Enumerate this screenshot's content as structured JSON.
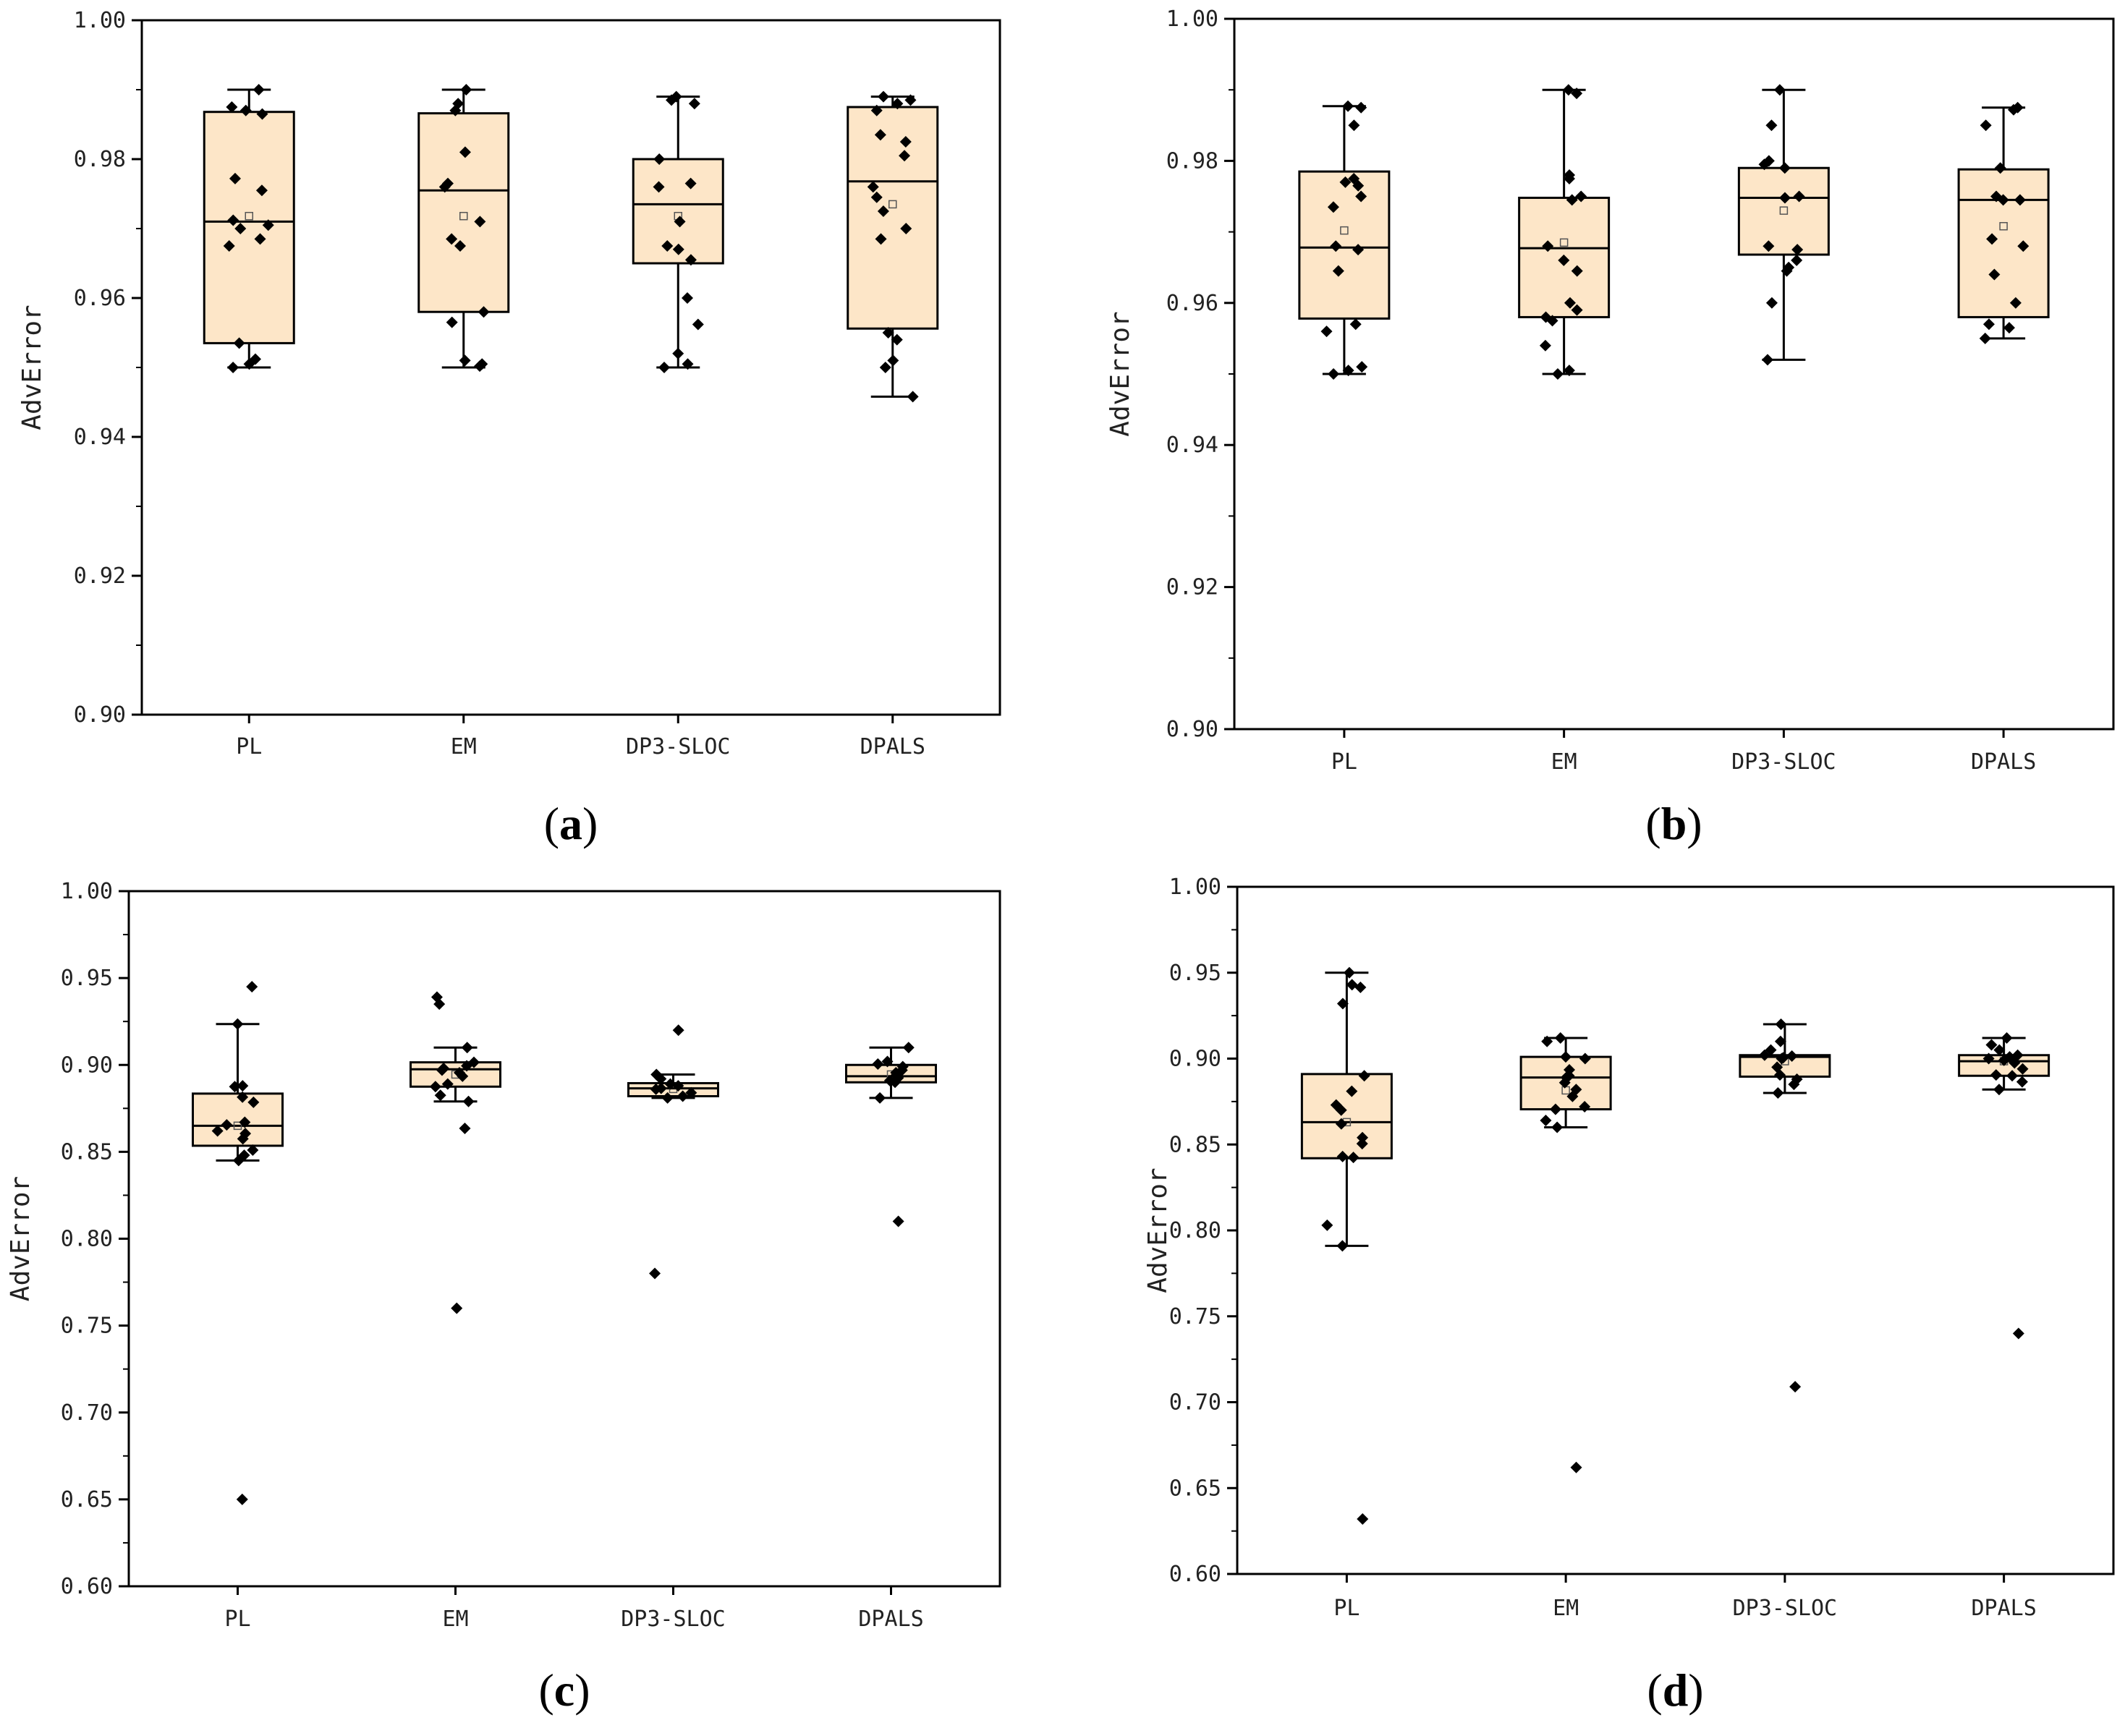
{
  "figure": {
    "box_fill": "#FDE6C8",
    "point_color": "#000000",
    "line_color": "#000000"
  },
  "chart_data": [
    {
      "panel": "a",
      "type": "box",
      "title": "",
      "xlabel": "",
      "ylabel": "AdvError",
      "ylim": [
        0.9,
        1.0
      ],
      "ytick_values": [
        0.9,
        0.92,
        0.94,
        0.96,
        0.98,
        1.0
      ],
      "yticks": [
        "0.90",
        "0.92",
        "0.94",
        "0.96",
        "0.98",
        "1.00"
      ],
      "minor_ticks_per_major": 1,
      "categories": [
        "PL",
        "EM",
        "DP3-SLOC",
        "DPALS"
      ],
      "boxes": [
        {
          "q1": 0.9535,
          "median": 0.971,
          "q3": 0.9868,
          "whisker_low": 0.95,
          "whisker_high": 0.99,
          "mean": 0.9718,
          "points": [
            0.99,
            0.9875,
            0.987,
            0.9865,
            0.9772,
            0.9755,
            0.9712,
            0.9705,
            0.97,
            0.9685,
            0.9675,
            0.9535,
            0.9512,
            0.9505,
            0.95
          ]
        },
        {
          "q1": 0.958,
          "median": 0.9755,
          "q3": 0.9866,
          "whisker_low": 0.95,
          "whisker_high": 0.99,
          "mean": 0.9718,
          "points": [
            0.99,
            0.988,
            0.987,
            0.981,
            0.9765,
            0.976,
            0.971,
            0.9685,
            0.9675,
            0.958,
            0.9565,
            0.951,
            0.9505,
            0.9502
          ]
        },
        {
          "q1": 0.965,
          "median": 0.9735,
          "q3": 0.98,
          "whisker_low": 0.95,
          "whisker_high": 0.989,
          "mean": 0.9718,
          "points": [
            0.989,
            0.9885,
            0.988,
            0.98,
            0.9765,
            0.976,
            0.971,
            0.9675,
            0.967,
            0.9655,
            0.96,
            0.9562,
            0.952,
            0.9505,
            0.95
          ]
        },
        {
          "q1": 0.9556,
          "median": 0.9768,
          "q3": 0.9875,
          "whisker_low": 0.9458,
          "whisker_high": 0.989,
          "mean": 0.9735,
          "points": [
            0.989,
            0.9885,
            0.988,
            0.987,
            0.9835,
            0.9825,
            0.9805,
            0.976,
            0.9745,
            0.9725,
            0.97,
            0.9685,
            0.955,
            0.954,
            0.951,
            0.95,
            0.9458
          ]
        }
      ]
    },
    {
      "panel": "b",
      "type": "box",
      "title": "",
      "xlabel": "",
      "ylabel": "AdvError",
      "ylim": [
        0.9,
        1.0
      ],
      "ytick_values": [
        0.9,
        0.92,
        0.94,
        0.96,
        0.98,
        1.0
      ],
      "yticks": [
        "0.90",
        "0.92",
        "0.94",
        "0.96",
        "0.98",
        "1.00"
      ],
      "minor_ticks_per_major": 1,
      "categories": [
        "PL",
        "EM",
        "DP3-SLOC",
        "DPALS"
      ],
      "boxes": [
        {
          "q1": 0.9578,
          "median": 0.9678,
          "q3": 0.9785,
          "whisker_low": 0.95,
          "whisker_high": 0.9877,
          "mean": 0.9702,
          "points": [
            0.9877,
            0.9875,
            0.985,
            0.9775,
            0.977,
            0.9765,
            0.975,
            0.9735,
            0.968,
            0.9675,
            0.9645,
            0.957,
            0.956,
            0.951,
            0.9505,
            0.95
          ]
        },
        {
          "q1": 0.958,
          "median": 0.9677,
          "q3": 0.9748,
          "whisker_low": 0.95,
          "whisker_high": 0.99,
          "mean": 0.9685,
          "points": [
            0.99,
            0.9895,
            0.978,
            0.9775,
            0.975,
            0.9745,
            0.968,
            0.966,
            0.9645,
            0.96,
            0.959,
            0.958,
            0.9575,
            0.954,
            0.9505,
            0.95
          ]
        },
        {
          "q1": 0.9668,
          "median": 0.9748,
          "q3": 0.979,
          "whisker_low": 0.952,
          "whisker_high": 0.99,
          "mean": 0.973,
          "points": [
            0.99,
            0.985,
            0.98,
            0.9795,
            0.979,
            0.975,
            0.9748,
            0.968,
            0.9675,
            0.966,
            0.965,
            0.9645,
            0.96,
            0.952
          ]
        },
        {
          "q1": 0.958,
          "median": 0.9745,
          "q3": 0.9788,
          "whisker_low": 0.955,
          "whisker_high": 0.9875,
          "mean": 0.9708,
          "points": [
            0.9875,
            0.9872,
            0.985,
            0.979,
            0.975,
            0.9745,
            0.9745,
            0.969,
            0.968,
            0.964,
            0.96,
            0.957,
            0.9565,
            0.955
          ]
        }
      ]
    },
    {
      "panel": "c",
      "type": "box",
      "title": "",
      "xlabel": "",
      "ylabel": "AdvError",
      "ylim": [
        0.6,
        1.0
      ],
      "ytick_values": [
        0.6,
        0.65,
        0.7,
        0.75,
        0.8,
        0.85,
        0.9,
        0.95,
        1.0
      ],
      "yticks": [
        "0.60",
        "0.65",
        "0.70",
        "0.75",
        "0.80",
        "0.85",
        "0.90",
        "0.95",
        "1.00"
      ],
      "minor_ticks_per_major": 1,
      "categories": [
        "PL",
        "EM",
        "DP3-SLOC",
        "DPALS"
      ],
      "boxes": [
        {
          "q1": 0.8535,
          "median": 0.865,
          "q3": 0.8835,
          "whisker_low": 0.845,
          "whisker_high": 0.9235,
          "mean": 0.865,
          "points": [
            0.945,
            0.9235,
            0.888,
            0.8875,
            0.8815,
            0.8785,
            0.867,
            0.8655,
            0.862,
            0.8605,
            0.8575,
            0.851,
            0.848,
            0.845,
            0.65
          ]
        },
        {
          "q1": 0.8875,
          "median": 0.8975,
          "q3": 0.9015,
          "whisker_low": 0.879,
          "whisker_high": 0.91,
          "mean": 0.8945,
          "points": [
            0.939,
            0.935,
            0.91,
            0.9015,
            0.8995,
            0.898,
            0.897,
            0.8955,
            0.8935,
            0.889,
            0.8875,
            0.8825,
            0.879,
            0.8635,
            0.76
          ]
        },
        {
          "q1": 0.882,
          "median": 0.8865,
          "q3": 0.8895,
          "whisker_low": 0.881,
          "whisker_high": 0.8945,
          "mean": 0.8862,
          "points": [
            0.92,
            0.8945,
            0.892,
            0.889,
            0.888,
            0.8865,
            0.886,
            0.884,
            0.882,
            0.881,
            0.78
          ]
        },
        {
          "q1": 0.89,
          "median": 0.8935,
          "q3": 0.9,
          "whisker_low": 0.881,
          "whisker_high": 0.91,
          "mean": 0.8945,
          "points": [
            0.91,
            0.902,
            0.9005,
            0.899,
            0.897,
            0.8955,
            0.894,
            0.8925,
            0.891,
            0.89,
            0.881,
            0.81
          ]
        }
      ]
    },
    {
      "panel": "d",
      "type": "box",
      "title": "",
      "xlabel": "",
      "ylabel": "AdvError",
      "ylim": [
        0.6,
        1.0
      ],
      "ytick_values": [
        0.6,
        0.65,
        0.7,
        0.75,
        0.8,
        0.85,
        0.9,
        0.95,
        1.0
      ],
      "yticks": [
        "0.60",
        "0.65",
        "0.70",
        "0.75",
        "0.80",
        "0.85",
        "0.90",
        "0.95",
        "1.00"
      ],
      "minor_ticks_per_major": 1,
      "categories": [
        "PL",
        "EM",
        "DP3-SLOC",
        "DPALS"
      ],
      "boxes": [
        {
          "q1": 0.842,
          "median": 0.863,
          "q3": 0.891,
          "whisker_low": 0.791,
          "whisker_high": 0.95,
          "mean": 0.863,
          "points": [
            0.95,
            0.943,
            0.9415,
            0.932,
            0.89,
            0.881,
            0.873,
            0.87,
            0.862,
            0.854,
            0.8505,
            0.843,
            0.8425,
            0.803,
            0.791,
            0.632
          ]
        },
        {
          "q1": 0.8705,
          "median": 0.889,
          "q3": 0.901,
          "whisker_low": 0.86,
          "whisker_high": 0.912,
          "mean": 0.8815,
          "points": [
            0.912,
            0.91,
            0.901,
            0.9,
            0.8935,
            0.89,
            0.889,
            0.886,
            0.882,
            0.878,
            0.872,
            0.8705,
            0.864,
            0.86,
            0.662
          ]
        },
        {
          "q1": 0.8895,
          "median": 0.901,
          "q3": 0.902,
          "whisker_low": 0.88,
          "whisker_high": 0.92,
          "mean": 0.8985,
          "points": [
            0.92,
            0.91,
            0.905,
            0.902,
            0.9015,
            0.9005,
            0.9,
            0.895,
            0.8905,
            0.888,
            0.885,
            0.88,
            0.709
          ]
        },
        {
          "q1": 0.89,
          "median": 0.8985,
          "q3": 0.902,
          "whisker_low": 0.882,
          "whisker_high": 0.912,
          "mean": 0.8985,
          "points": [
            0.912,
            0.908,
            0.905,
            0.902,
            0.901,
            0.9,
            0.899,
            0.8975,
            0.894,
            0.8905,
            0.89,
            0.8865,
            0.882,
            0.74
          ]
        }
      ]
    }
  ],
  "panel_labels": [
    {
      "open": "(",
      "letter": "a",
      "close": ")"
    },
    {
      "open": "(",
      "letter": "b",
      "close": ")"
    },
    {
      "open": "(",
      "letter": "c",
      "close": ")"
    },
    {
      "open": "(",
      "letter": "d",
      "close": ")"
    }
  ]
}
